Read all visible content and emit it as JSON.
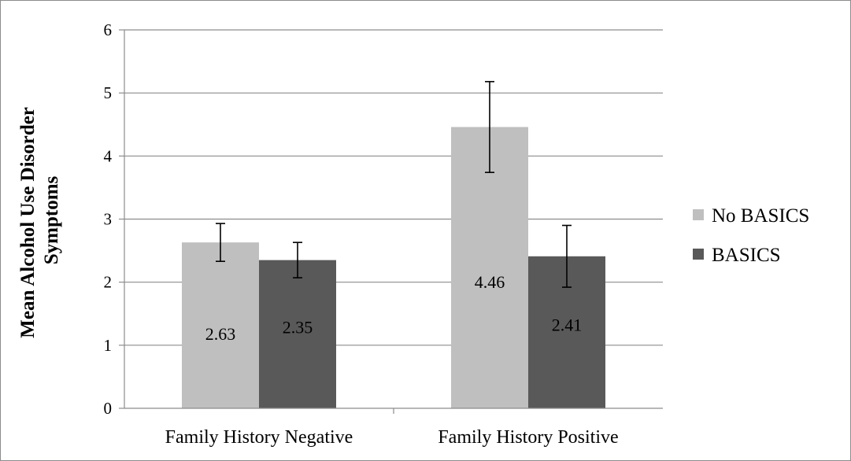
{
  "chart_data": {
    "type": "bar",
    "title": "",
    "xlabel": "",
    "ylabel_lines": [
      "Mean Alcohol Use Disorder",
      "Symptoms"
    ],
    "ylim": [
      0,
      6
    ],
    "yticks": [
      0,
      1,
      2,
      3,
      4,
      5,
      6
    ],
    "grid": true,
    "legend_position": "right",
    "categories": [
      "Family History Negative",
      "Family History Positive"
    ],
    "series": [
      {
        "name": "No BASICS",
        "color": "#bfbfbf",
        "values": [
          2.63,
          4.46
        ],
        "errors": [
          0.3,
          0.72
        ],
        "data_labels": [
          "2.63",
          "4.46"
        ]
      },
      {
        "name": "BASICS",
        "color": "#595959",
        "values": [
          2.35,
          2.41
        ],
        "errors": [
          0.28,
          0.49
        ],
        "data_labels": [
          "2.35",
          "2.41"
        ]
      }
    ]
  }
}
